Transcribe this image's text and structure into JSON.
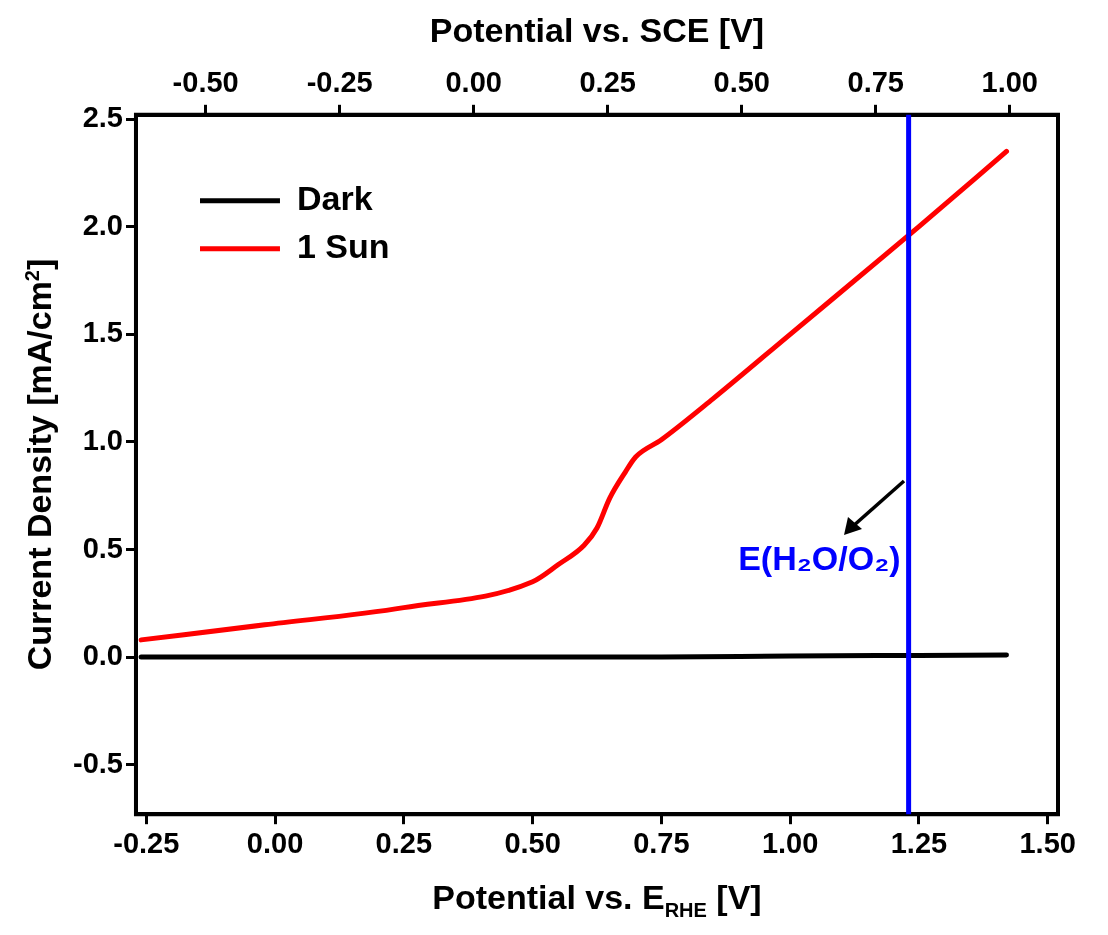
{
  "chart_data": {
    "type": "line",
    "xlabel": "Potential vs. E$_{RHE}$ [V]",
    "ylabel": "Current Density [mA/cm$^{2}$]",
    "x2label": "Potential vs. SCE [V]",
    "xlim": [
      -0.27,
      1.52
    ],
    "ylim": [
      -0.73,
      2.52
    ],
    "x2lim": [
      -0.63,
      1.09
    ],
    "xticks": [
      -0.25,
      {
        "value": 0,
        "label": "0.00"
      },
      0.25,
      {
        "value": 0.5,
        "label": "0.50"
      },
      0.75,
      {
        "value": 1,
        "label": "1.00"
      },
      1.25,
      {
        "value": 1.5,
        "label": "1.50"
      }
    ],
    "x2ticks": [
      {
        "value": -0.5,
        "label": "-0.50"
      },
      -0.25,
      {
        "value": 0,
        "label": "0.00"
      },
      0.25,
      {
        "value": 0.5,
        "label": "0.50"
      },
      0.75,
      {
        "value": 1,
        "label": "1.00"
      }
    ],
    "yticks": [
      -0.5,
      {
        "value": 0,
        "label": "0.0"
      },
      0.5,
      {
        "value": 1,
        "label": "1.0"
      },
      1.5,
      {
        "value": 2,
        "label": "2.0"
      },
      2.5
    ],
    "series": [
      {
        "name": "Dark",
        "color": "#000000",
        "x": [
          -0.26,
          0.25,
          0.75,
          1.0,
          1.25,
          1.42
        ],
        "values": [
          0,
          0,
          0,
          0.005,
          0.008,
          0.01
        ]
      },
      {
        "name": "1 Sun",
        "color": "#ff0000",
        "x": [
          -0.26,
          -0.02,
          0.25,
          0.5,
          0.55,
          0.6,
          0.625,
          0.65,
          0.68,
          0.7,
          0.75,
          0.85,
          1.0,
          1.25,
          1.42
        ],
        "values": [
          0.08,
          0.15,
          0.23,
          0.35,
          0.43,
          0.52,
          0.6,
          0.74,
          0.86,
          0.93,
          1.01,
          1.2,
          1.5,
          2.0,
          2.35
        ]
      }
    ],
    "ref_lines": [
      {
        "axis": "x",
        "value": 1.23,
        "color": "#0000ff"
      }
    ],
    "annotations": [
      {
        "text": "E(H₂O/O₂)",
        "x": 1.23,
        "y": 0.45
      }
    ],
    "legend": "top left",
    "grid": false,
    "marker": "none",
    "line_style": "solid"
  }
}
